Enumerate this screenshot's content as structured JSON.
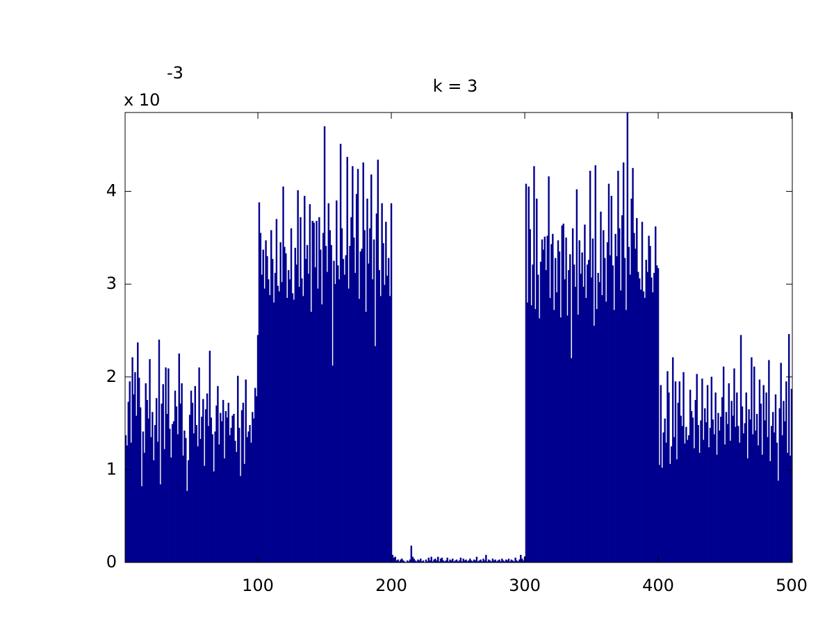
{
  "chart_data": {
    "type": "bar",
    "title": "k = 3",
    "axis_multiplier": "x 10",
    "axis_exponent": "-3",
    "color": "#00008f",
    "xlim": [
      0.5,
      500.5
    ],
    "xticks": [
      100,
      200,
      300,
      400,
      500
    ],
    "ylim": [
      0,
      4.85
    ],
    "yticks": [
      0,
      1,
      2,
      3,
      4
    ],
    "x": [
      1,
      2,
      3,
      4,
      5,
      6,
      7,
      8,
      9,
      10,
      11,
      12,
      13,
      14,
      15,
      16,
      17,
      18,
      19,
      20,
      21,
      22,
      23,
      24,
      25,
      26,
      27,
      28,
      29,
      30,
      31,
      32,
      33,
      34,
      35,
      36,
      37,
      38,
      39,
      40,
      41,
      42,
      43,
      44,
      45,
      46,
      47,
      48,
      49,
      50,
      51,
      52,
      53,
      54,
      55,
      56,
      57,
      58,
      59,
      60,
      61,
      62,
      63,
      64,
      65,
      66,
      67,
      68,
      69,
      70,
      71,
      72,
      73,
      74,
      75,
      76,
      77,
      78,
      79,
      80,
      81,
      82,
      83,
      84,
      85,
      86,
      87,
      88,
      89,
      90,
      91,
      92,
      93,
      94,
      95,
      96,
      97,
      98,
      99,
      100,
      101,
      102,
      103,
      104,
      105,
      106,
      107,
      108,
      109,
      110,
      111,
      112,
      113,
      114,
      115,
      116,
      117,
      118,
      119,
      120,
      121,
      122,
      123,
      124,
      125,
      126,
      127,
      128,
      129,
      130,
      131,
      132,
      133,
      134,
      135,
      136,
      137,
      138,
      139,
      140,
      141,
      142,
      143,
      144,
      145,
      146,
      147,
      148,
      149,
      150,
      151,
      152,
      153,
      154,
      155,
      156,
      157,
      158,
      159,
      160,
      161,
      162,
      163,
      164,
      165,
      166,
      167,
      168,
      169,
      170,
      171,
      172,
      173,
      174,
      175,
      176,
      177,
      178,
      179,
      180,
      181,
      182,
      183,
      184,
      185,
      186,
      187,
      188,
      189,
      190,
      191,
      192,
      193,
      194,
      195,
      196,
      197,
      198,
      199,
      200,
      201,
      202,
      203,
      204,
      205,
      206,
      207,
      208,
      209,
      210,
      211,
      212,
      213,
      214,
      215,
      216,
      217,
      218,
      219,
      220,
      221,
      222,
      223,
      224,
      225,
      226,
      227,
      228,
      229,
      230,
      231,
      232,
      233,
      234,
      235,
      236,
      237,
      238,
      239,
      240,
      241,
      242,
      243,
      244,
      245,
      246,
      247,
      248,
      249,
      250,
      251,
      252,
      253,
      254,
      255,
      256,
      257,
      258,
      259,
      260,
      261,
      262,
      263,
      264,
      265,
      266,
      267,
      268,
      269,
      270,
      271,
      272,
      273,
      274,
      275,
      276,
      277,
      278,
      279,
      280,
      281,
      282,
      283,
      284,
      285,
      286,
      287,
      288,
      289,
      290,
      291,
      292,
      293,
      294,
      295,
      296,
      297,
      298,
      299,
      300,
      301,
      302,
      303,
      304,
      305,
      306,
      307,
      308,
      309,
      310,
      311,
      312,
      313,
      314,
      315,
      316,
      317,
      318,
      319,
      320,
      321,
      322,
      323,
      324,
      325,
      326,
      327,
      328,
      329,
      330,
      331,
      332,
      333,
      334,
      335,
      336,
      337,
      338,
      339,
      340,
      341,
      342,
      343,
      344,
      345,
      346,
      347,
      348,
      349,
      350,
      351,
      352,
      353,
      354,
      355,
      356,
      357,
      358,
      359,
      360,
      361,
      362,
      363,
      364,
      365,
      366,
      367,
      368,
      369,
      370,
      371,
      372,
      373,
      374,
      375,
      376,
      377,
      378,
      379,
      380,
      381,
      382,
      383,
      384,
      385,
      386,
      387,
      388,
      389,
      390,
      391,
      392,
      393,
      394,
      395,
      396,
      397,
      398,
      399,
      400,
      401,
      402,
      403,
      404,
      405,
      406,
      407,
      408,
      409,
      410,
      411,
      412,
      413,
      414,
      415,
      416,
      417,
      418,
      419,
      420,
      421,
      422,
      423,
      424,
      425,
      426,
      427,
      428,
      429,
      430,
      431,
      432,
      433,
      434,
      435,
      436,
      437,
      438,
      439,
      440,
      441,
      442,
      443,
      444,
      445,
      446,
      447,
      448,
      449,
      450,
      451,
      452,
      453,
      454,
      455,
      456,
      457,
      458,
      459,
      460,
      461,
      462,
      463,
      464,
      465,
      466,
      467,
      468,
      469,
      470,
      471,
      472,
      473,
      474,
      475,
      476,
      477,
      478,
      479,
      480,
      481,
      482,
      483,
      484,
      485,
      486,
      487,
      488,
      489,
      490,
      491,
      492,
      493,
      494,
      495,
      496,
      497,
      498,
      499,
      500
    ],
    "values": [
      1.37,
      1.26,
      1.73,
      1.95,
      1.29,
      2.21,
      1.81,
      2.05,
      1.58,
      2.37,
      1.99,
      1.67,
      0.82,
      1.41,
      1.18,
      1.93,
      1.75,
      1.55,
      2.19,
      1.35,
      1.62,
      1.1,
      1.48,
      1.77,
      1.3,
      2.4,
      0.84,
      1.71,
      1.92,
      1.22,
      2.1,
      1.6,
      2.09,
      1.44,
      1.13,
      1.49,
      1.52,
      1.85,
      1.68,
      1.38,
      2.25,
      1.71,
      1.93,
      1.15,
      1.42,
      1.34,
      0.77,
      1.1,
      1.59,
      1.85,
      1.72,
      1.39,
      1.9,
      1.48,
      1.25,
      2.1,
      1.33,
      1.57,
      1.76,
      1.04,
      1.65,
      1.82,
      1.47,
      2.28,
      1.56,
      1.38,
      0.98,
      1.41,
      1.69,
      1.9,
      1.27,
      1.61,
      1.52,
      1.75,
      1.12,
      1.63,
      1.56,
      1.72,
      1.37,
      1.45,
      1.58,
      1.6,
      1.31,
      1.19,
      2.01,
      1.45,
      0.93,
      1.64,
      1.72,
      1.06,
      1.97,
      1.35,
      1.41,
      1.48,
      1.29,
      1.62,
      1.55,
      1.88,
      1.79,
      2.45,
      3.88,
      3.55,
      3.1,
      3.37,
      2.95,
      3.47,
      3.3,
      3.05,
      2.88,
      3.58,
      3.27,
      2.8,
      3.12,
      3.7,
      2.98,
      2.92,
      3.45,
      3.02,
      4.05,
      3.4,
      3.33,
      2.85,
      3.15,
      3.05,
      3.6,
      2.9,
      2.83,
      3.39,
      3.21,
      4.01,
      2.97,
      3.72,
      3.06,
      2.87,
      3.95,
      3.27,
      3.42,
      3.11,
      3.86,
      2.7,
      3.68,
      3.66,
      3.18,
      3.68,
      2.95,
      3.72,
      3.37,
      2.78,
      3.55,
      4.7,
      3.41,
      3.13,
      3.87,
      3.58,
      3.42,
      2.12,
      3.25,
      3.0,
      3.9,
      3.2,
      3.05,
      4.51,
      3.6,
      3.27,
      3.1,
      3.31,
      4.37,
      2.95,
      3.41,
      3.72,
      4.27,
      3.5,
      3.12,
      3.97,
      4.24,
      2.84,
      3.35,
      3.38,
      4.31,
      3.58,
      2.7,
      3.92,
      3.22,
      3.6,
      4.18,
      3.05,
      3.48,
      2.33,
      3.76,
      4.34,
      3.15,
      2.87,
      3.87,
      3.44,
      2.99,
      3.67,
      3.09,
      3.28,
      2.87,
      3.87,
      0.08,
      0.05,
      0.06,
      0.02,
      0.03,
      0.01,
      0.03,
      0.04,
      0.02,
      0.01,
      0.0,
      0.02,
      0.01,
      0.03,
      0.18,
      0.06,
      0.04,
      0.02,
      0.01,
      0.03,
      0.02,
      0.04,
      0.01,
      0.02,
      0.0,
      0.03,
      0.01,
      0.05,
      0.02,
      0.06,
      0.01,
      0.03,
      0.04,
      0.02,
      0.06,
      0.01,
      0.04,
      0.05,
      0.02,
      0.01,
      0.02,
      0.05,
      0.01,
      0.03,
      0.02,
      0.04,
      0.01,
      0.02,
      0.03,
      0.01,
      0.02,
      0.05,
      0.01,
      0.04,
      0.02,
      0.03,
      0.01,
      0.02,
      0.04,
      0.02,
      0.01,
      0.03,
      0.02,
      0.06,
      0.01,
      0.02,
      0.03,
      0.01,
      0.04,
      0.02,
      0.08,
      0.01,
      0.03,
      0.02,
      0.01,
      0.04,
      0.02,
      0.03,
      0.01,
      0.02,
      0.03,
      0.01,
      0.04,
      0.02,
      0.01,
      0.03,
      0.02,
      0.04,
      0.01,
      0.03,
      0.02,
      0.01,
      0.05,
      0.02,
      0.01,
      0.03,
      0.08,
      0.04,
      0.02,
      0.06,
      4.08,
      2.8,
      4.05,
      3.59,
      2.77,
      3.21,
      4.27,
      2.73,
      3.92,
      3.1,
      2.63,
      3.24,
      3.48,
      3.37,
      3.51,
      3.15,
      3.52,
      4.16,
      2.85,
      3.43,
      3.54,
      2.72,
      3.28,
      2.91,
      3.47,
      3.35,
      2.64,
      3.63,
      3.65,
      3.05,
      3.5,
      2.66,
      3.15,
      3.32,
      2.2,
      3.6,
      3.21,
      2.97,
      4.02,
      2.67,
      3.47,
      3.11,
      3.34,
      2.97,
      3.64,
      2.85,
      3.21,
      3.26,
      4.22,
      3.07,
      3.49,
      2.55,
      4.28,
      2.73,
      3.12,
      3.02,
      3.78,
      2.88,
      3.58,
      3.28,
      2.81,
      3.45,
      4.08,
      3.31,
      3.95,
      3.2,
      2.72,
      3.54,
      3.3,
      4.22,
      3.6,
      2.93,
      3.74,
      4.31,
      3.28,
      2.72,
      4.85,
      3.4,
      3.1,
      3.92,
      4.25,
      3.55,
      3.38,
      3.71,
      3.13,
      3.06,
      2.94,
      3.67,
      2.92,
      2.85,
      3.26,
      3.13,
      3.52,
      3.41,
      3.07,
      2.91,
      3.12,
      3.62,
      3.2,
      3.17,
      1.05,
      1.91,
      1.02,
      1.4,
      1.55,
      1.29,
      2.06,
      1.83,
      1.06,
      1.25,
      2.21,
      1.35,
      1.95,
      1.11,
      1.72,
      1.95,
      1.58,
      1.47,
      2.05,
      1.28,
      1.46,
      1.32,
      1.37,
      1.86,
      1.63,
      1.56,
      1.23,
      1.75,
      2.03,
      1.48,
      1.18,
      1.53,
      1.98,
      1.32,
      1.66,
      1.51,
      1.91,
      1.24,
      1.45,
      2.0,
      1.54,
      1.38,
      1.83,
      1.16,
      1.61,
      1.42,
      1.57,
      1.78,
      2.11,
      1.27,
      1.62,
      1.49,
      1.93,
      1.31,
      1.74,
      1.58,
      2.09,
      1.46,
      1.83,
      1.47,
      1.29,
      2.45,
      1.68,
      1.39,
      1.5,
      1.83,
      1.12,
      1.65,
      1.54,
      2.21,
      1.38,
      2.11,
      1.42,
      1.6,
      1.26,
      1.97,
      1.71,
      1.16,
      1.91,
      1.53,
      1.83,
      1.35,
      2.18,
      1.09,
      1.47,
      1.62,
      1.4,
      1.81,
      1.29,
      0.88,
      1.66,
      2.15,
      1.37,
      1.74,
      1.52,
      1.95,
      1.18,
      2.46,
      1.15,
      1.87
    ]
  }
}
